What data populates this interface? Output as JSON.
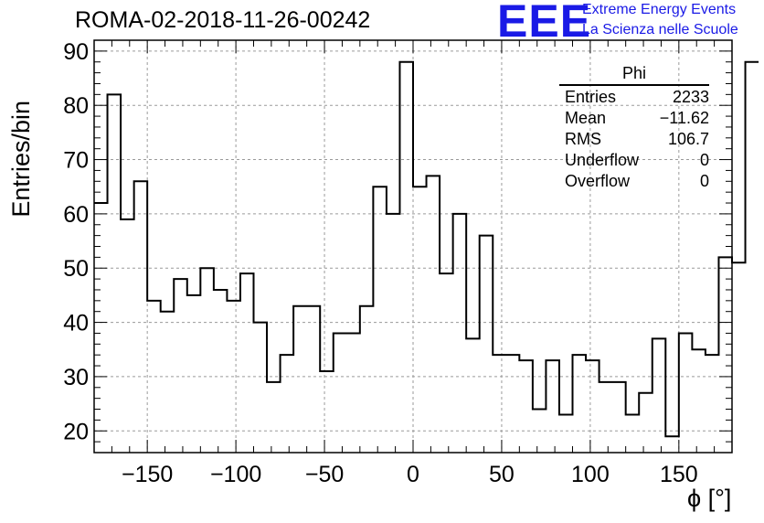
{
  "title": "ROMA-02-2018-11-26-00242",
  "logo": {
    "mark": "EEE",
    "line1": "Extreme Energy Events",
    "line2": "La Scienza nelle Scuole",
    "color": "#1a1ae6"
  },
  "stats_box": {
    "title": "Phi",
    "rows": [
      {
        "label": "Entries",
        "value": "2233"
      },
      {
        "label": "Mean",
        "value": "−11.62"
      },
      {
        "label": "RMS",
        "value": "106.7"
      },
      {
        "label": "Underflow",
        "value": "0"
      },
      {
        "label": "Overflow",
        "value": "0"
      }
    ]
  },
  "chart_data": {
    "type": "bar",
    "style": "step-histogram",
    "title": "ROMA-02-2018-11-26-00242",
    "xlabel": "ϕ [°]",
    "ylabel": "Entries/bin",
    "xlim": [
      -180,
      180
    ],
    "ylim": [
      16,
      92
    ],
    "xticks": [
      -150,
      -100,
      -50,
      0,
      50,
      100,
      150
    ],
    "xtick_labels": [
      "−150",
      "−100",
      "−50",
      "0",
      "50",
      "100",
      "150"
    ],
    "yticks": [
      20,
      30,
      40,
      50,
      60,
      70,
      80,
      90
    ],
    "ytick_labels": [
      "20",
      "30",
      "40",
      "50",
      "60",
      "70",
      "80",
      "90"
    ],
    "grid": true,
    "bin_edges_start": -180,
    "bin_width": 7.5,
    "values": [
      62,
      82,
      59,
      66,
      44,
      42,
      48,
      45,
      50,
      46,
      44,
      49,
      40,
      29,
      34,
      43,
      43,
      31,
      38,
      38,
      43,
      65,
      60,
      88,
      65,
      67,
      49,
      60,
      37,
      56,
      34,
      34,
      33,
      24,
      33,
      23,
      34,
      33,
      29,
      29,
      23,
      27,
      37,
      19,
      38,
      35,
      34,
      52,
      51,
      88
    ],
    "line_color": "#000000"
  }
}
